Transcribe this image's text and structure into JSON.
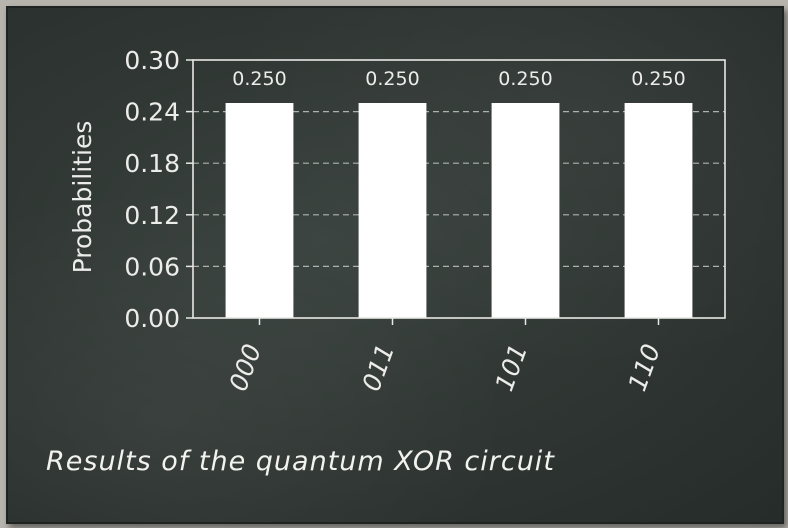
{
  "chart_data": {
    "type": "bar",
    "categories": [
      "000",
      "011",
      "101",
      "110"
    ],
    "values": [
      0.25,
      0.25,
      0.25,
      0.25
    ],
    "data_labels": [
      "0.250",
      "0.250",
      "0.250",
      "0.250"
    ],
    "ylabel": "Probabilities",
    "ylim": [
      0,
      0.3
    ],
    "yticks": [
      "0.00",
      "0.06",
      "0.12",
      "0.18",
      "0.24",
      "0.30"
    ],
    "grid": "horizontal dashed",
    "colors": {
      "bar": "#ffffff",
      "axis": "#e8e8e4",
      "grid": "#aeb2ae",
      "text": "#ececea"
    }
  },
  "caption": "Results of the quantum XOR circuit"
}
